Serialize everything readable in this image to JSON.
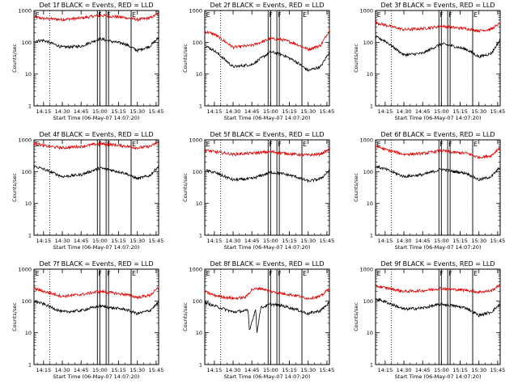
{
  "chart_data": [
    {
      "type": "line",
      "title": "Det 1f BLACK = Events, RED = LLD",
      "xlabel": "Start Time (06-May-07 14:07:20)",
      "ylabel": "Counts/sec",
      "yscale": "log",
      "ylim": [
        1,
        1000
      ],
      "x_ticks": [
        "14:15",
        "14:30",
        "14:45",
        "15:00",
        "15:15",
        "15:30",
        "15:45"
      ],
      "y_ticks": [
        "1",
        "10",
        "100",
        "1000"
      ],
      "flags": [
        {
          "label": "E",
          "t": "14:07"
        },
        {
          "label": "F",
          "t": "14:58"
        },
        {
          "label": "F",
          "t": "15:05"
        },
        {
          "label": "E",
          "t": "15:25"
        }
      ],
      "series": [
        {
          "name": "RED",
          "color": "#e00000",
          "x": [
            "14:07",
            "14:15",
            "14:30",
            "14:45",
            "15:00",
            "15:10",
            "15:20",
            "15:30",
            "15:40",
            "15:47"
          ],
          "values": [
            620,
            560,
            520,
            580,
            700,
            650,
            600,
            520,
            580,
            800
          ]
        },
        {
          "name": "BLACK",
          "color": "#000000",
          "x": [
            "14:07",
            "14:15",
            "14:30",
            "14:45",
            "15:00",
            "15:10",
            "15:20",
            "15:30",
            "15:40",
            "15:47"
          ],
          "values": [
            110,
            115,
            70,
            75,
            130,
            105,
            90,
            55,
            75,
            140
          ]
        }
      ]
    },
    {
      "type": "line",
      "title": "Det 2f BLACK = Events, RED = LLD",
      "xlabel": "Start Time (06-May-07 14:07:20)",
      "ylabel": "Counts/sec",
      "yscale": "log",
      "ylim": [
        1,
        1000
      ],
      "x_ticks": [
        "14:15",
        "14:30",
        "14:45",
        "15:00",
        "15:15",
        "15:30",
        "15:45"
      ],
      "y_ticks": [
        "1",
        "10",
        "100",
        "1000"
      ],
      "flags": [
        {
          "label": "E",
          "t": "14:07"
        },
        {
          "label": "F",
          "t": "14:58"
        },
        {
          "label": "F",
          "t": "15:05"
        },
        {
          "label": "E",
          "t": "15:25"
        }
      ],
      "series": [
        {
          "name": "RED",
          "color": "#e00000",
          "x": [
            "14:07",
            "14:15",
            "14:30",
            "14:45",
            "15:00",
            "15:10",
            "15:20",
            "15:30",
            "15:40",
            "15:47"
          ],
          "values": [
            220,
            180,
            70,
            80,
            130,
            120,
            90,
            60,
            80,
            240
          ]
        },
        {
          "name": "BLACK",
          "color": "#000000",
          "x": [
            "14:07",
            "14:15",
            "14:30",
            "14:45",
            "15:00",
            "15:10",
            "15:20",
            "15:30",
            "15:40",
            "15:47"
          ],
          "values": [
            80,
            55,
            17,
            20,
            50,
            40,
            25,
            13,
            17,
            50
          ]
        }
      ]
    },
    {
      "type": "line",
      "title": "Det 3f BLACK = Events, RED = LLD",
      "xlabel": "Start Time (06-May-07 14:07:20)",
      "ylabel": "Counts/sec",
      "yscale": "log",
      "ylim": [
        1,
        1000
      ],
      "x_ticks": [
        "14:15",
        "14:30",
        "14:45",
        "15:00",
        "15:15",
        "15:30",
        "15:45"
      ],
      "y_ticks": [
        "1",
        "10",
        "100",
        "1000"
      ],
      "flags": [
        {
          "label": "E",
          "t": "14:07"
        },
        {
          "label": "F",
          "t": "14:58"
        },
        {
          "label": "F",
          "t": "15:05"
        },
        {
          "label": "E",
          "t": "15:25"
        }
      ],
      "series": [
        {
          "name": "RED",
          "color": "#e00000",
          "x": [
            "14:07",
            "14:15",
            "14:30",
            "14:45",
            "15:00",
            "15:10",
            "15:20",
            "15:30",
            "15:40",
            "15:47"
          ],
          "values": [
            420,
            350,
            250,
            270,
            320,
            290,
            270,
            230,
            260,
            400
          ]
        },
        {
          "name": "BLACK",
          "color": "#000000",
          "x": [
            "14:07",
            "14:15",
            "14:30",
            "14:45",
            "15:00",
            "15:10",
            "15:20",
            "15:30",
            "15:40",
            "15:47"
          ],
          "values": [
            150,
            110,
            40,
            45,
            90,
            75,
            60,
            35,
            45,
            120
          ]
        }
      ]
    },
    {
      "type": "line",
      "title": "Det 4f BLACK = Events, RED = LLD",
      "xlabel": "Start Time (06-May-07 14:07:20)",
      "ylabel": "Counts/sec",
      "yscale": "log",
      "ylim": [
        1,
        1000
      ],
      "x_ticks": [
        "14:15",
        "14:30",
        "14:45",
        "15:00",
        "15:15",
        "15:30",
        "15:45"
      ],
      "y_ticks": [
        "1",
        "10",
        "100",
        "1000"
      ],
      "flags": [
        {
          "label": "E",
          "t": "14:07"
        },
        {
          "label": "F",
          "t": "14:58"
        },
        {
          "label": "F",
          "t": "15:05"
        },
        {
          "label": "E",
          "t": "15:25"
        }
      ],
      "series": [
        {
          "name": "RED",
          "color": "#e00000",
          "x": [
            "14:07",
            "14:15",
            "14:30",
            "14:45",
            "15:00",
            "15:10",
            "15:20",
            "15:30",
            "15:40",
            "15:47"
          ],
          "values": [
            800,
            650,
            560,
            620,
            760,
            700,
            640,
            560,
            620,
            850
          ]
        },
        {
          "name": "BLACK",
          "color": "#000000",
          "x": [
            "14:07",
            "14:15",
            "14:30",
            "14:45",
            "15:00",
            "15:10",
            "15:20",
            "15:30",
            "15:40",
            "15:47"
          ],
          "values": [
            150,
            120,
            70,
            80,
            130,
            110,
            90,
            60,
            75,
            150
          ]
        }
      ]
    },
    {
      "type": "line",
      "title": "Det 5f BLACK = Events, RED = LLD",
      "xlabel": "Start Time (06-May-07 14:07:20)",
      "ylabel": "Counts/sec",
      "yscale": "log",
      "ylim": [
        1,
        1000
      ],
      "x_ticks": [
        "14:15",
        "14:30",
        "14:45",
        "15:00",
        "15:15",
        "15:30",
        "15:45"
      ],
      "y_ticks": [
        "1",
        "10",
        "100",
        "1000"
      ],
      "flags": [
        {
          "label": "E",
          "t": "14:07"
        },
        {
          "label": "F",
          "t": "14:58"
        },
        {
          "label": "F",
          "t": "15:05"
        },
        {
          "label": "E",
          "t": "15:25"
        }
      ],
      "series": [
        {
          "name": "RED",
          "color": "#e00000",
          "x": [
            "14:07",
            "14:15",
            "14:30",
            "14:45",
            "15:00",
            "15:10",
            "15:20",
            "15:30",
            "15:40",
            "15:47"
          ],
          "values": [
            480,
            420,
            350,
            380,
            420,
            380,
            350,
            330,
            360,
            500
          ]
        },
        {
          "name": "BLACK",
          "color": "#000000",
          "x": [
            "14:07",
            "14:15",
            "14:30",
            "14:45",
            "15:00",
            "15:10",
            "15:20",
            "15:30",
            "15:40",
            "15:47"
          ],
          "values": [
            110,
            95,
            55,
            60,
            95,
            85,
            70,
            50,
            60,
            110
          ]
        }
      ]
    },
    {
      "type": "line",
      "title": "Det 6f BLACK = Events, RED = LLD",
      "xlabel": "Start Time (06-May-07 14:07:20)",
      "ylabel": "Counts/sec",
      "yscale": "log",
      "ylim": [
        1,
        1000
      ],
      "x_ticks": [
        "14:15",
        "14:30",
        "14:45",
        "15:00",
        "15:15",
        "15:30",
        "15:45"
      ],
      "y_ticks": [
        "1",
        "10",
        "100",
        "1000"
      ],
      "flags": [
        {
          "label": "E",
          "t": "14:07"
        },
        {
          "label": "F",
          "t": "14:58"
        },
        {
          "label": "F",
          "t": "15:05"
        },
        {
          "label": "E",
          "t": "15:25"
        }
      ],
      "series": [
        {
          "name": "RED",
          "color": "#e00000",
          "x": [
            "14:07",
            "14:15",
            "14:30",
            "14:45",
            "15:00",
            "15:10",
            "15:20",
            "15:30",
            "15:40",
            "15:47"
          ],
          "values": [
            650,
            500,
            350,
            370,
            460,
            400,
            380,
            280,
            320,
            600
          ]
        },
        {
          "name": "BLACK",
          "color": "#000000",
          "x": [
            "14:07",
            "14:15",
            "14:30",
            "14:45",
            "15:00",
            "15:10",
            "15:20",
            "15:30",
            "15:40",
            "15:47"
          ],
          "values": [
            150,
            120,
            70,
            80,
            120,
            100,
            90,
            55,
            70,
            140
          ]
        }
      ]
    },
    {
      "type": "line",
      "title": "Det 7f BLACK = Events, RED = LLD",
      "xlabel": "Start Time (06-May-07 14:07:20)",
      "ylabel": "Counts/sec",
      "yscale": "log",
      "ylim": [
        1,
        1000
      ],
      "x_ticks": [
        "14:15",
        "14:30",
        "14:45",
        "15:00",
        "15:15",
        "15:30",
        "15:45"
      ],
      "y_ticks": [
        "1",
        "10",
        "100",
        "1000"
      ],
      "flags": [
        {
          "label": "E",
          "t": "14:07"
        },
        {
          "label": "F",
          "t": "14:58"
        },
        {
          "label": "F",
          "t": "15:05"
        },
        {
          "label": "E",
          "t": "15:25"
        }
      ],
      "series": [
        {
          "name": "RED",
          "color": "#e00000",
          "x": [
            "14:07",
            "14:15",
            "14:30",
            "14:45",
            "15:00",
            "15:10",
            "15:20",
            "15:30",
            "15:40",
            "15:47"
          ],
          "values": [
            250,
            200,
            140,
            160,
            200,
            180,
            160,
            130,
            150,
            260
          ]
        },
        {
          "name": "BLACK",
          "color": "#000000",
          "x": [
            "14:07",
            "14:15",
            "14:30",
            "14:45",
            "15:00",
            "15:10",
            "15:20",
            "15:30",
            "15:40",
            "15:47"
          ],
          "values": [
            100,
            80,
            45,
            50,
            70,
            60,
            55,
            40,
            50,
            90
          ]
        }
      ]
    },
    {
      "type": "line",
      "title": "Det 8f BLACK = Events, RED = LLD",
      "xlabel": "Start Time (06-May-07 14:07:20)",
      "ylabel": "Counts/sec",
      "yscale": "log",
      "ylim": [
        1,
        1000
      ],
      "x_ticks": [
        "14:15",
        "14:30",
        "14:45",
        "15:00",
        "15:15",
        "15:30",
        "15:45"
      ],
      "y_ticks": [
        "1",
        "10",
        "100",
        "1000"
      ],
      "flags": [
        {
          "label": "E",
          "t": "14:07"
        },
        {
          "label": "F",
          "t": "14:58"
        },
        {
          "label": "F",
          "t": "15:05"
        },
        {
          "label": "E",
          "t": "15:25"
        }
      ],
      "series": [
        {
          "name": "RED",
          "color": "#e00000",
          "x": [
            "14:07",
            "14:15",
            "14:30",
            "14:40",
            "14:45",
            "14:52",
            "15:00",
            "15:10",
            "15:20",
            "15:30",
            "15:40",
            "15:47"
          ],
          "values": [
            200,
            150,
            120,
            130,
            230,
            250,
            200,
            170,
            150,
            120,
            140,
            250
          ]
        },
        {
          "name": "BLACK",
          "color": "#000000",
          "x": [
            "14:07",
            "14:15",
            "14:30",
            "14:42",
            "14:43",
            "14:48",
            "14:49",
            "14:52",
            "15:00",
            "15:10",
            "15:20",
            "15:30",
            "15:40",
            "15:47"
          ],
          "values": [
            90,
            70,
            45,
            50,
            12,
            55,
            10,
            60,
            80,
            70,
            55,
            40,
            50,
            90
          ]
        }
      ]
    },
    {
      "type": "line",
      "title": "Det 9f BLACK = Events, RED = LLD",
      "xlabel": "Start Time (06-May-07 14:07:20)",
      "ylabel": "Counts/sec",
      "yscale": "log",
      "ylim": [
        1,
        1000
      ],
      "x_ticks": [
        "14:15",
        "14:30",
        "14:45",
        "15:00",
        "15:15",
        "15:30",
        "15:45"
      ],
      "y_ticks": [
        "1",
        "10",
        "100",
        "1000"
      ],
      "flags": [
        {
          "label": "E",
          "t": "14:07"
        },
        {
          "label": "F",
          "t": "14:58"
        },
        {
          "label": "F",
          "t": "15:05"
        },
        {
          "label": "E",
          "t": "15:25"
        }
      ],
      "series": [
        {
          "name": "RED",
          "color": "#e00000",
          "x": [
            "14:07",
            "14:15",
            "14:30",
            "14:45",
            "15:00",
            "15:10",
            "15:20",
            "15:30",
            "15:40",
            "15:47"
          ],
          "values": [
            300,
            260,
            200,
            210,
            250,
            230,
            220,
            190,
            210,
            330
          ]
        },
        {
          "name": "BLACK",
          "color": "#000000",
          "x": [
            "14:07",
            "14:15",
            "14:30",
            "14:45",
            "15:00",
            "15:10",
            "15:20",
            "15:30",
            "15:40",
            "15:47"
          ],
          "values": [
            120,
            95,
            55,
            60,
            80,
            70,
            60,
            35,
            45,
            80
          ]
        }
      ]
    }
  ]
}
